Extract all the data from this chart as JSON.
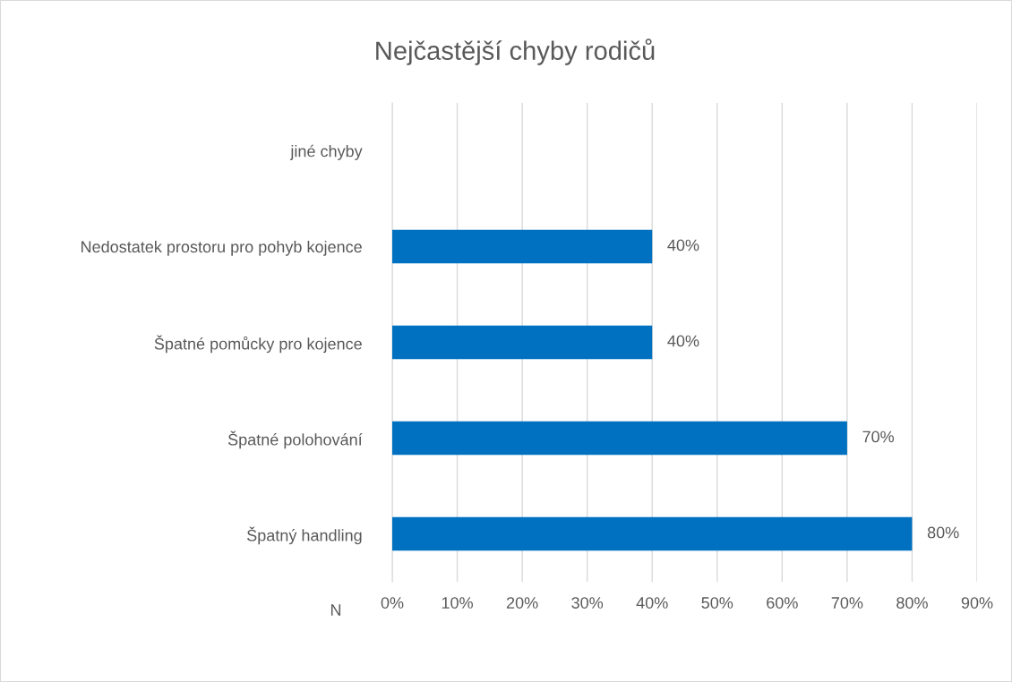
{
  "chart_data": {
    "type": "bar",
    "orientation": "horizontal",
    "title": "Nejčastější chyby rodičů",
    "xlabel": "N",
    "categories": [
      "jiné chyby",
      "Nedostatek prostoru pro pohyb kojence",
      "Špatné pomůcky pro kojence",
      "Špatné polohování",
      "Špatný handling"
    ],
    "values": [
      null,
      40,
      40,
      70,
      80
    ],
    "value_labels": [
      null,
      "40%",
      "40%",
      "70%",
      "80%"
    ],
    "color": "#0070c0",
    "xlim": [
      0,
      90
    ],
    "xticks": [
      {
        "value": 0,
        "label": "0%"
      },
      {
        "value": 10,
        "label": "10%"
      },
      {
        "value": 20,
        "label": "20%"
      },
      {
        "value": 30,
        "label": "30%"
      },
      {
        "value": 40,
        "label": "40%"
      },
      {
        "value": 50,
        "label": "50%"
      },
      {
        "value": 60,
        "label": "60%"
      },
      {
        "value": 70,
        "label": "70%"
      },
      {
        "value": 80,
        "label": "80%"
      },
      {
        "value": 90,
        "label": "90%"
      }
    ],
    "grid": "x",
    "legend": false
  }
}
